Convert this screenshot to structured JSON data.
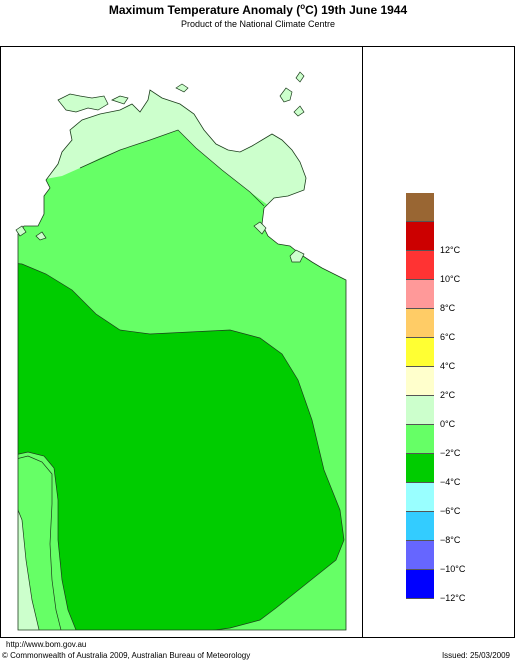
{
  "header": {
    "title_pre": "Maximum Temperature Anomaly (",
    "title_deg": "o",
    "title_post": "C)   19th June 1944",
    "subtitle": "Product of the National Climate Centre"
  },
  "legend": {
    "items": [
      {
        "color": "#996633",
        "label": ""
      },
      {
        "color": "#cc0000",
        "label": "12°C"
      },
      {
        "color": "#ff3333",
        "label": "10°C"
      },
      {
        "color": "#ff9999",
        "label": "8°C"
      },
      {
        "color": "#ffcc66",
        "label": "6°C"
      },
      {
        "color": "#ffff33",
        "label": "4°C"
      },
      {
        "color": "#ffffcc",
        "label": "2°C"
      },
      {
        "color": "#ccffcc",
        "label": "0°C"
      },
      {
        "color": "#66ff66",
        "label": "−2°C"
      },
      {
        "color": "#00cc00",
        "label": "−4°C"
      },
      {
        "color": "#99ffff",
        "label": "−6°C"
      },
      {
        "color": "#33ccff",
        "label": "−8°C"
      },
      {
        "color": "#6666ff",
        "label": "−10°C"
      },
      {
        "color": "#0000ff",
        "label": "−12°C"
      }
    ]
  },
  "map": {
    "colors": {
      "anomaly_0_to_-2": "#ccffcc",
      "anomaly_-2_to_-4": "#66ff66",
      "anomaly_-4_to_-6": "#00cc00",
      "outline": "#2a4a2a"
    }
  },
  "footer": {
    "url": "http://www.bom.gov.au",
    "copyright": "© Commonwealth of Australia 2009, Australian Bureau of Meteorology",
    "issued": "Issued: 25/03/2009"
  }
}
